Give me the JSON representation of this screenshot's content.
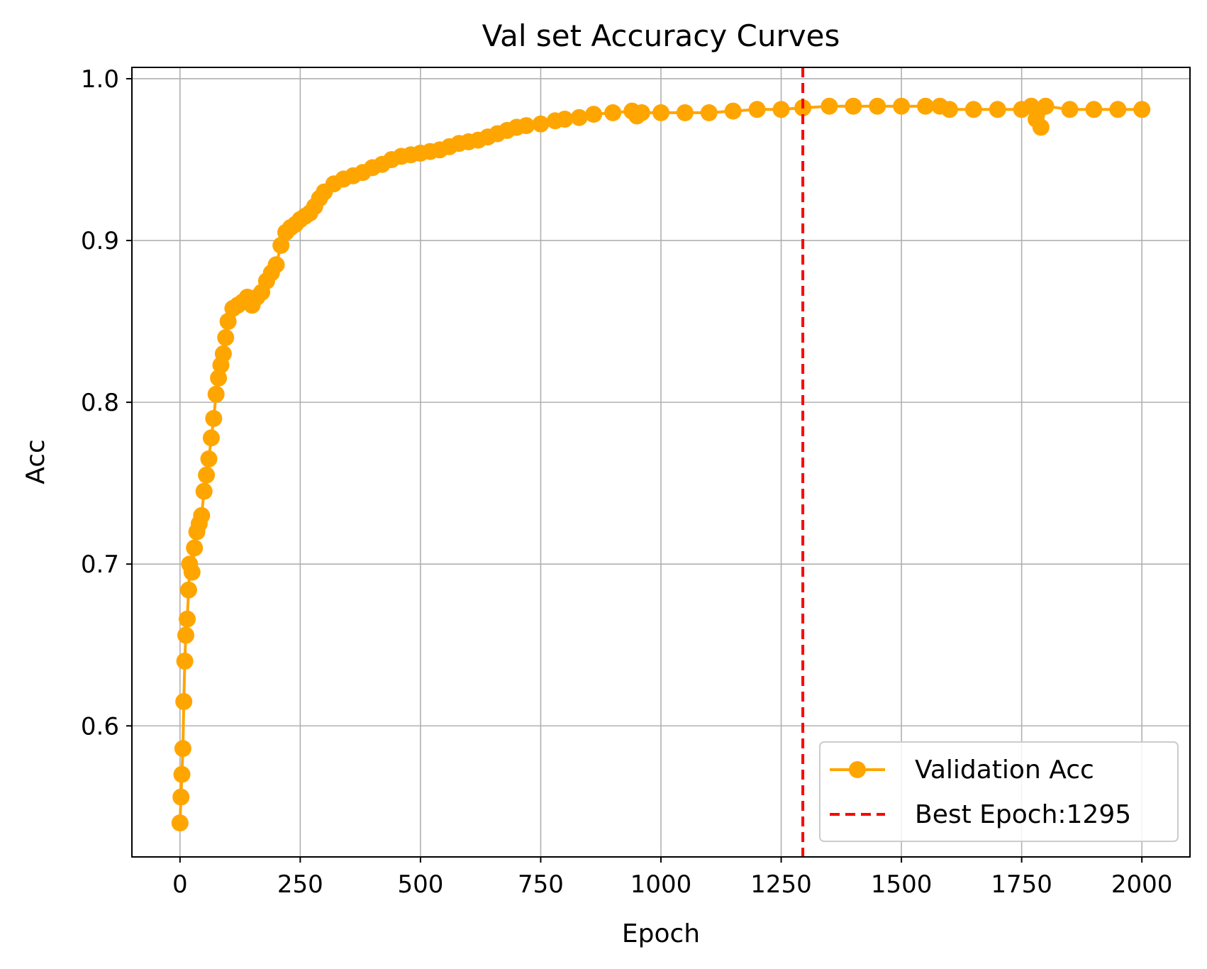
{
  "chart_data": {
    "type": "line",
    "title": "Val set Accuracy Curves",
    "xlabel": "Epoch",
    "ylabel": "Acc",
    "xlim": [
      -100,
      2100
    ],
    "ylim": [
      0.519,
      1.007
    ],
    "xticks": [
      0,
      250,
      500,
      750,
      1000,
      1250,
      1500,
      1750,
      2000
    ],
    "yticks": [
      0.6,
      0.7,
      0.8,
      0.9,
      1.0
    ],
    "xtick_labels": [
      "0",
      "250",
      "500",
      "750",
      "1000",
      "1250",
      "1500",
      "1750",
      "2000"
    ],
    "ytick_labels": [
      "0.6",
      "0.7",
      "0.8",
      "0.9",
      "1.0"
    ],
    "grid": true,
    "legend_position": "lower-right",
    "series": [
      {
        "name": "Validation Acc",
        "color": "#ffa500",
        "marker": "circle",
        "x": [
          0,
          2,
          4,
          6,
          8,
          10,
          12,
          15,
          18,
          20,
          25,
          30,
          35,
          40,
          45,
          50,
          55,
          60,
          65,
          70,
          75,
          80,
          85,
          90,
          95,
          100,
          110,
          120,
          130,
          140,
          150,
          160,
          170,
          180,
          190,
          200,
          210,
          220,
          230,
          240,
          250,
          260,
          270,
          280,
          290,
          300,
          320,
          340,
          360,
          380,
          400,
          420,
          440,
          460,
          480,
          500,
          520,
          540,
          560,
          580,
          600,
          620,
          640,
          660,
          680,
          700,
          720,
          750,
          780,
          800,
          830,
          860,
          900,
          940,
          950,
          960,
          1000,
          1050,
          1100,
          1150,
          1200,
          1250,
          1295,
          1350,
          1400,
          1450,
          1500,
          1550,
          1580,
          1600,
          1650,
          1700,
          1750,
          1770,
          1780,
          1790,
          1800,
          1850,
          1900,
          1950,
          2000
        ],
        "y": [
          0.54,
          0.556,
          0.57,
          0.586,
          0.615,
          0.64,
          0.656,
          0.666,
          0.684,
          0.7,
          0.695,
          0.71,
          0.72,
          0.725,
          0.73,
          0.745,
          0.755,
          0.765,
          0.778,
          0.79,
          0.805,
          0.815,
          0.823,
          0.83,
          0.84,
          0.85,
          0.858,
          0.86,
          0.862,
          0.865,
          0.86,
          0.865,
          0.868,
          0.875,
          0.88,
          0.885,
          0.897,
          0.905,
          0.908,
          0.91,
          0.913,
          0.915,
          0.917,
          0.921,
          0.926,
          0.93,
          0.935,
          0.938,
          0.94,
          0.942,
          0.945,
          0.947,
          0.95,
          0.952,
          0.953,
          0.954,
          0.955,
          0.956,
          0.958,
          0.96,
          0.961,
          0.962,
          0.964,
          0.966,
          0.968,
          0.97,
          0.971,
          0.972,
          0.974,
          0.975,
          0.976,
          0.978,
          0.979,
          0.98,
          0.977,
          0.979,
          0.979,
          0.979,
          0.979,
          0.98,
          0.981,
          0.981,
          0.982,
          0.983,
          0.983,
          0.983,
          0.983,
          0.983,
          0.983,
          0.981,
          0.981,
          0.981,
          0.981,
          0.983,
          0.975,
          0.97,
          0.983,
          0.981,
          0.981,
          0.981,
          0.981
        ]
      },
      {
        "name": "Best Epoch:1295",
        "color": "#ff0000",
        "style": "dashed",
        "vline_x": 1295
      }
    ]
  }
}
